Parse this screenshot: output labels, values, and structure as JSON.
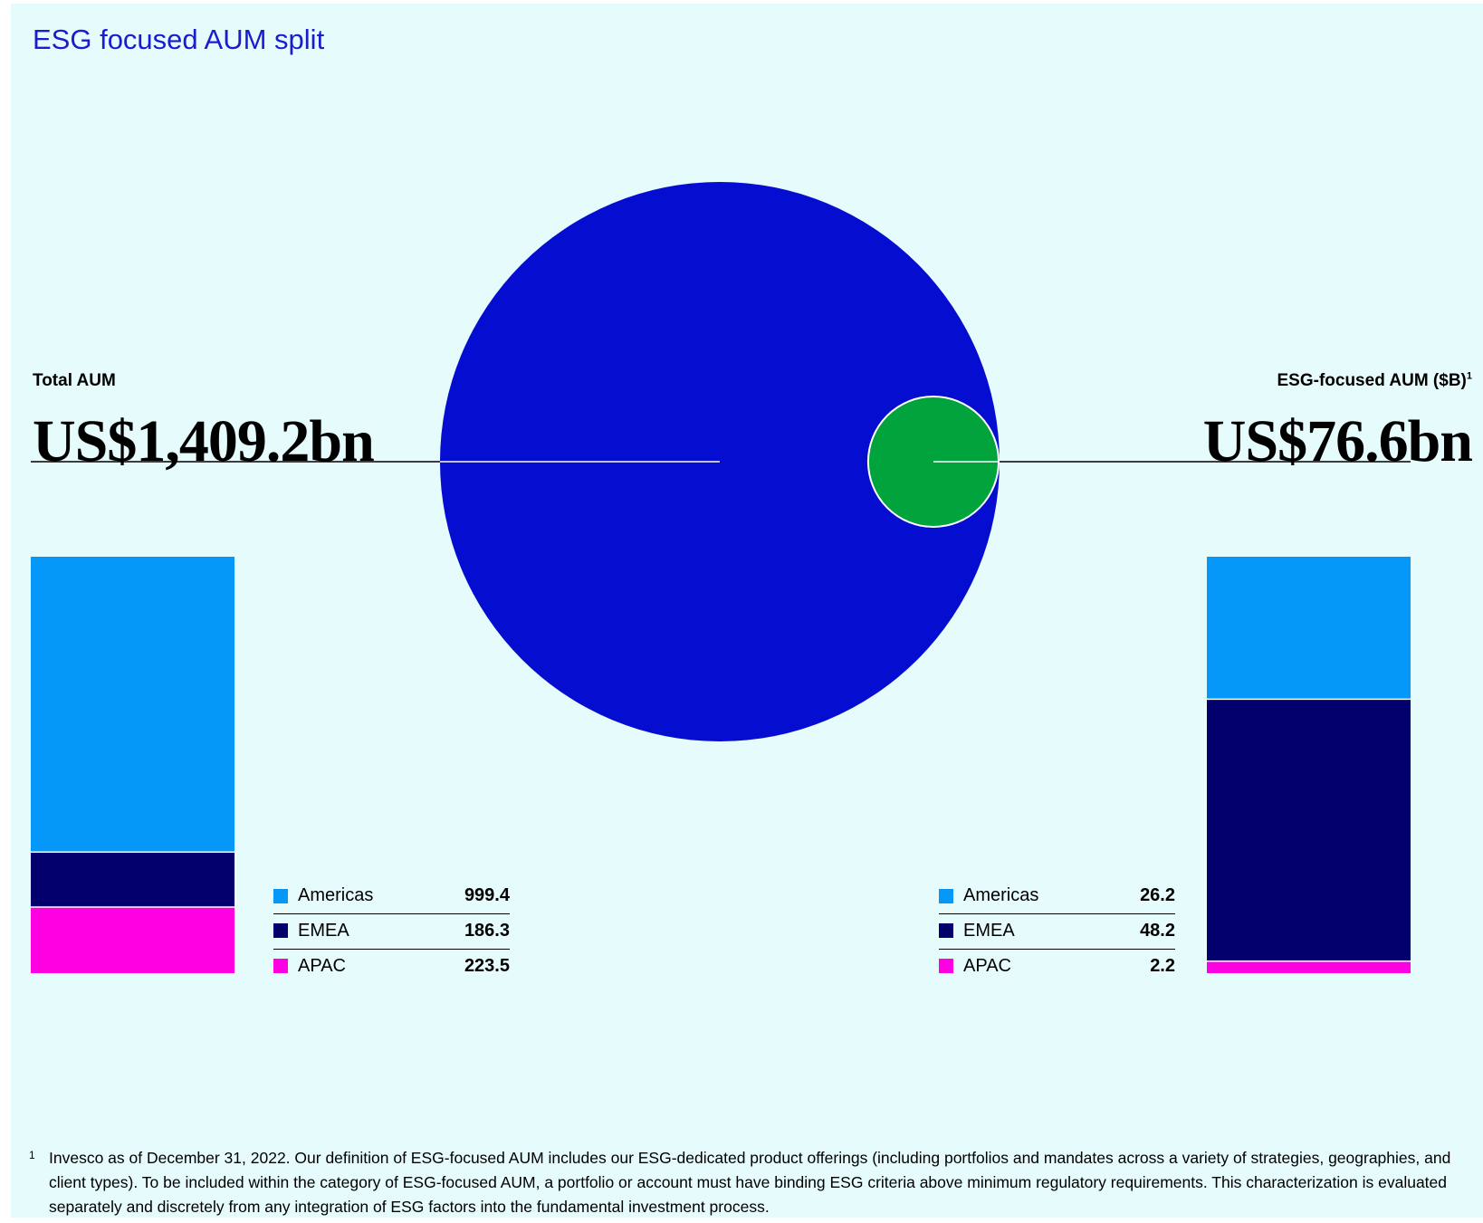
{
  "title": "ESG focused AUM split",
  "total": {
    "label": "Total AUM",
    "value": "US$1,409.2bn"
  },
  "esg": {
    "label": "ESG-focused AUM ($B)",
    "label_footnote": "1",
    "value": "US$76.6bn"
  },
  "colors": {
    "background": "#e6fbfc",
    "title": "#1a1ccf",
    "total_circle": "#040dd0",
    "esg_circle": "#00a33c",
    "Americas": "#0698f8",
    "EMEA": "#03006e",
    "APAC": "#ff00e2"
  },
  "chart_data": [
    {
      "type": "pie",
      "values": [
        1409.2,
        76.6
      ],
      "labels": [
        "Total AUM",
        "ESG-focused AUM ($B)"
      ]
    },
    {
      "type": "bar",
      "stacked": true,
      "categories": [
        "Total AUM"
      ],
      "series": [
        {
          "name": "Americas",
          "values": [
            999.4
          ],
          "label": "999.4"
        },
        {
          "name": "EMEA",
          "values": [
            186.3
          ],
          "label": "186.3"
        },
        {
          "name": "APAC",
          "values": [
            223.5
          ],
          "label": "223.5"
        }
      ]
    },
    {
      "type": "bar",
      "stacked": true,
      "categories": [
        "ESG-focused AUM ($B)"
      ],
      "series": [
        {
          "name": "Americas",
          "values": [
            26.2
          ],
          "label": "26.2"
        },
        {
          "name": "EMEA",
          "values": [
            48.2
          ],
          "label": "48.2"
        },
        {
          "name": "APAC",
          "values": [
            2.2
          ],
          "label": "2.2"
        }
      ]
    }
  ],
  "footnote": {
    "mark": "1",
    "text": "Invesco as of December 31, 2022. Our definition of ESG-focused AUM includes our ESG-dedicated product offerings (including portfolios and mandates across a variety of strategies, geographies, and client types). To be included within the category of ESG-focused AUM, a portfolio or account must have binding ESG criteria above minimum regulatory requirements. This characterization is evaluated separately and discretely from any integration of ESG factors into the fundamental investment process."
  }
}
